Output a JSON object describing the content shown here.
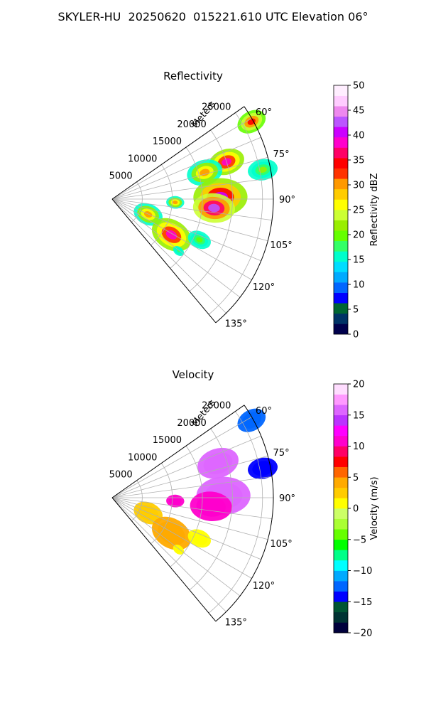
{
  "figure_title": "SKYLER-HU  20250620  015221.610 UTC Elevation 06°",
  "colors": {
    "reflectivity_scale": [
      "#00004c",
      "#003366",
      "#006633",
      "#0000ff",
      "#0066ff",
      "#00aaff",
      "#00ddff",
      "#00ffcc",
      "#33ff66",
      "#66ff00",
      "#99ee00",
      "#ccff33",
      "#ffff00",
      "#ffcc00",
      "#ff9900",
      "#ff3300",
      "#ff0000",
      "#ff0066",
      "#ff00cc",
      "#cc00ff",
      "#bb55ff",
      "#ee88ee",
      "#ffccff",
      "#ffeeff"
    ],
    "velocity_scale": [
      "#00003c",
      "#003333",
      "#005533",
      "#0000ff",
      "#0066ff",
      "#00aaff",
      "#00ffff",
      "#00ff88",
      "#00ff00",
      "#66ff00",
      "#aaff33",
      "#ccff66",
      "#ffff00",
      "#ffcc00",
      "#ffaa00",
      "#ff6600",
      "#ff0000",
      "#ff0066",
      "#ff00cc",
      "#ff00ff",
      "#bb33ff",
      "#dd66ff",
      "#ff99ff",
      "#ffddff"
    ],
    "grid": "#b0b0b0"
  },
  "chart_data": [
    {
      "type": "heatmap",
      "projection": "polar-sector",
      "title": "Reflectivity",
      "range_label": "Meters",
      "range_ticks": [
        5000,
        10000,
        15000,
        20000,
        25000
      ],
      "range_tick_labels": [
        "5000",
        "10000",
        "15000",
        "20000",
        "25000"
      ],
      "azimuth_range_deg": [
        55,
        140
      ],
      "azimuth_ticks_deg": [
        60,
        75,
        90,
        105,
        120,
        135
      ],
      "azimuth_tick_labels": [
        "60°",
        "75°",
        "90°",
        "105°",
        "120°",
        "135°"
      ],
      "colorbar": {
        "label": "Reflectivity dBZ",
        "range": [
          0,
          50
        ],
        "ticks": [
          0,
          5,
          10,
          15,
          20,
          25,
          30,
          35,
          40,
          45,
          50
        ],
        "tick_labels": [
          "0",
          "5",
          "10",
          "15",
          "20",
          "25",
          "30",
          "35",
          "40",
          "45",
          "50"
        ]
      },
      "echo_cells": [
        {
          "azimuth_deg": 61,
          "range_m": 26500,
          "extent_m": 2500,
          "peak": 35
        },
        {
          "azimuth_deg": 72,
          "range_m": 20000,
          "extent_m": 3000,
          "peak": 38
        },
        {
          "azimuth_deg": 74,
          "range_m": 16000,
          "extent_m": 3000,
          "peak": 30
        },
        {
          "azimuth_deg": 79,
          "range_m": 25500,
          "extent_m": 2500,
          "peak": 22
        },
        {
          "azimuth_deg": 89,
          "range_m": 18000,
          "extent_m": 4500,
          "peak": 40
        },
        {
          "azimuth_deg": 95,
          "range_m": 17000,
          "extent_m": 3500,
          "peak": 42
        },
        {
          "azimuth_deg": 93,
          "range_m": 10500,
          "extent_m": 1500,
          "peak": 30
        },
        {
          "azimuth_deg": 113,
          "range_m": 6500,
          "extent_m": 2500,
          "peak": 30
        },
        {
          "azimuth_deg": 121,
          "range_m": 11500,
          "extent_m": 3500,
          "peak": 38
        },
        {
          "azimuth_deg": 115,
          "range_m": 16000,
          "extent_m": 2000,
          "peak": 20
        },
        {
          "azimuth_deg": 128,
          "range_m": 14000,
          "extent_m": 1000,
          "peak": 18
        }
      ]
    },
    {
      "type": "heatmap",
      "projection": "polar-sector",
      "title": "Velocity",
      "range_label": "Meters",
      "range_ticks": [
        5000,
        10000,
        15000,
        20000,
        25000
      ],
      "range_tick_labels": [
        "5000",
        "10000",
        "15000",
        "20000",
        "25000"
      ],
      "azimuth_range_deg": [
        55,
        140
      ],
      "azimuth_ticks_deg": [
        60,
        75,
        90,
        105,
        120,
        135
      ],
      "azimuth_tick_labels": [
        "60°",
        "75°",
        "90°",
        "105°",
        "120°",
        "135°"
      ],
      "colorbar": {
        "label": "Velocity (m/s)",
        "range": [
          -20,
          20
        ],
        "ticks": [
          -20,
          -15,
          -10,
          -5,
          0,
          5,
          10,
          15,
          20
        ],
        "tick_labels": [
          "−20",
          "−15",
          "−10",
          "−5",
          "0",
          "5",
          "10",
          "15",
          "20"
        ]
      },
      "echo_cells": [
        {
          "azimuth_deg": 61,
          "range_m": 26500,
          "extent_m": 2500,
          "value": -12
        },
        {
          "azimuth_deg": 72,
          "range_m": 18500,
          "extent_m": 3500,
          "value": 15
        },
        {
          "azimuth_deg": 79,
          "range_m": 25500,
          "extent_m": 2500,
          "value": -14
        },
        {
          "azimuth_deg": 89,
          "range_m": 18500,
          "extent_m": 4500,
          "value": 16
        },
        {
          "azimuth_deg": 95,
          "range_m": 16500,
          "extent_m": 3500,
          "value": 11
        },
        {
          "azimuth_deg": 93,
          "range_m": 10500,
          "extent_m": 1500,
          "value": 11
        },
        {
          "azimuth_deg": 113,
          "range_m": 6500,
          "extent_m": 2500,
          "value": 3
        },
        {
          "azimuth_deg": 121,
          "range_m": 11500,
          "extent_m": 3500,
          "value": 4
        },
        {
          "azimuth_deg": 115,
          "range_m": 16000,
          "extent_m": 2000,
          "value": 1
        },
        {
          "azimuth_deg": 128,
          "range_m": 14000,
          "extent_m": 1000,
          "value": 0
        }
      ]
    }
  ]
}
